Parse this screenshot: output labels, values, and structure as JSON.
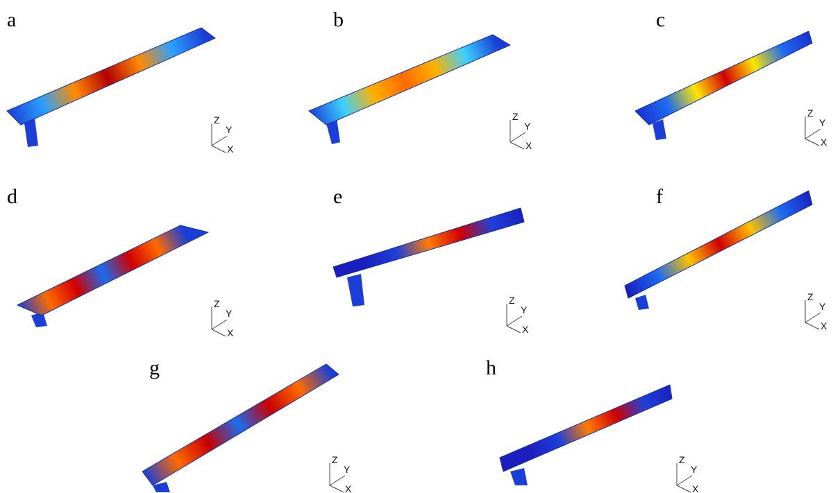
{
  "panels": [
    {
      "label": "a",
      "colors": [
        "#1b3fd6",
        "#2aa0ff",
        "#ff8a00",
        "#b30000",
        "#ff8a00",
        "#2aa0ff",
        "#1b3fd6"
      ]
    },
    {
      "label": "b",
      "colors": [
        "#1b3fd6",
        "#3bd0ff",
        "#ffb000",
        "#ff6a00",
        "#ffb000",
        "#3bd0ff",
        "#1b3fd6"
      ]
    },
    {
      "label": "c",
      "colors": [
        "#1b2fcf",
        "#1d6cf0",
        "#ffe500",
        "#d10000",
        "#ffe500",
        "#1d6cf0",
        "#1b2fcf"
      ]
    },
    {
      "label": "d",
      "colors": [
        "#1b3fd6",
        "#ff6a00",
        "#d10000",
        "#1b6cf0",
        "#d10000",
        "#ff6a00",
        "#1b3fd6"
      ]
    },
    {
      "label": "e",
      "colors": [
        "#1b1fc0",
        "#1b1fc0",
        "#2040d8",
        "#ff7a00",
        "#d10000",
        "#2040d8",
        "#1b1fc0"
      ]
    },
    {
      "label": "f",
      "colors": [
        "#1b1fc0",
        "#1d6cf0",
        "#ffc000",
        "#d10000",
        "#ffc000",
        "#1d6cf0",
        "#1b1fc0"
      ]
    },
    {
      "label": "g",
      "colors": [
        "#1b3fd6",
        "#ff6a00",
        "#c80000",
        "#1b6cf0",
        "#c80000",
        "#ff6a00",
        "#1b3fd6"
      ]
    },
    {
      "label": "h",
      "colors": [
        "#1b1fc0",
        "#1b1fc0",
        "#2040d8",
        "#ff7a00",
        "#d10000",
        "#2040d8",
        "#1b1fc0"
      ]
    }
  ],
  "axis_labels": {
    "z": "Z",
    "y": "Y",
    "x": "X"
  }
}
